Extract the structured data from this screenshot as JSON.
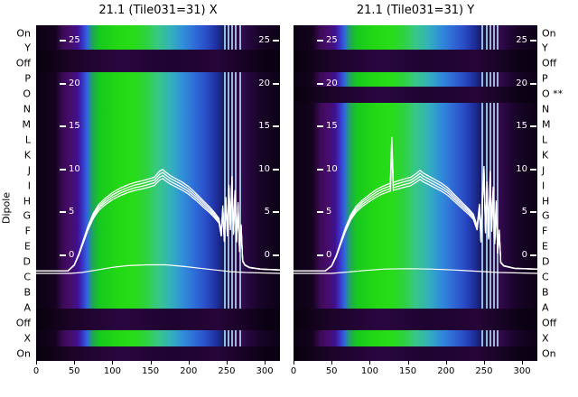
{
  "figure": {
    "ylabel": "Dipole",
    "background": "#ffffff",
    "panels": [
      {
        "title": "21.1 (Tile031=31) X"
      },
      {
        "title": "21.1 (Tile031=31) Y"
      }
    ],
    "left_axis_labels": [
      "On",
      "Y",
      "Off",
      "P",
      "O",
      "N",
      "M",
      "L",
      "K",
      "J",
      "I",
      "H",
      "G",
      "F",
      "E",
      "D",
      "C",
      "B",
      "A",
      "Off",
      "X",
      "On"
    ],
    "right_axis_labels": [
      "On",
      "Y",
      "Off",
      "P",
      "O **",
      "N",
      "M",
      "L",
      "K",
      "J",
      "I",
      "H",
      "G",
      "F",
      "E",
      "D",
      "C",
      "B",
      "A",
      "Off",
      "X",
      "On"
    ],
    "inner_y_ticks": [
      25,
      20,
      15,
      10,
      5,
      0
    ],
    "x_ticks": [
      0,
      50,
      100,
      150,
      200,
      250,
      300
    ]
  },
  "palette": {
    "line_color": "#ffffff",
    "spike_line_color": "#b9e4fa",
    "heatmap_gradient": [
      [
        "0%",
        "#0b0113"
      ],
      [
        "8%",
        "#150320"
      ],
      [
        "11%",
        "#3c0a58"
      ],
      [
        "14%",
        "#480d6a"
      ],
      [
        "17%",
        "#3f1090"
      ],
      [
        "19%",
        "#3a33c6"
      ],
      [
        "21%",
        "#2f68de"
      ],
      [
        "23%",
        "#1fa35e"
      ],
      [
        "26%",
        "#17c81e"
      ],
      [
        "33%",
        "#22d714"
      ],
      [
        "40%",
        "#28dc18"
      ],
      [
        "45%",
        "#2ed33c"
      ],
      [
        "50%",
        "#38c787"
      ],
      [
        "55%",
        "#33b2b8"
      ],
      [
        "60%",
        "#3090d8"
      ],
      [
        "65%",
        "#2f6cd8"
      ],
      [
        "70%",
        "#2a4cc6"
      ],
      [
        "74%",
        "#1f2f9e"
      ],
      [
        "77%",
        "#151b62"
      ],
      [
        "79%",
        "#1a0b3e"
      ],
      [
        "81%",
        "#2b0845"
      ],
      [
        "85%",
        "#300a4c"
      ],
      [
        "88%",
        "#23063a"
      ],
      [
        "92%",
        "#180426"
      ],
      [
        "100%",
        "#0e0218"
      ]
    ]
  },
  "chart_data": [
    {
      "type": "heatmap",
      "title": "21.1 (Tile031=31) X",
      "x_range": [
        0,
        320
      ],
      "x_ticks": [
        0,
        50,
        100,
        150,
        200,
        250,
        300
      ],
      "value_axis_ticks": [
        25,
        20,
        15,
        10,
        5,
        0
      ],
      "rows": [
        "On",
        "Y",
        "Off",
        "P",
        "O",
        "N",
        "M",
        "L",
        "K",
        "J",
        "I",
        "H",
        "G",
        "F",
        "E",
        "D",
        "C",
        "B",
        "A",
        "Off",
        "X",
        "On"
      ],
      "dark_bands": [
        {
          "top": 0.072,
          "bottom": 0.14
        },
        {
          "top": 0.845,
          "bottom": 0.908
        },
        {
          "top": 0.957,
          "bottom": 1.0
        }
      ],
      "spike_lines_x": [
        246,
        251,
        256,
        261,
        267
      ],
      "bundle_factors": [
        1,
        0.97,
        0.94,
        0.91
      ],
      "series": [
        {
          "name": "power-trace-bundle",
          "points": [
            [
              0,
              -1.8
            ],
            [
              42,
              -1.8
            ],
            [
              50,
              -1.1
            ],
            [
              56,
              0.2
            ],
            [
              62,
              1.8
            ],
            [
              68,
              3.4
            ],
            [
              75,
              4.9
            ],
            [
              82,
              5.9
            ],
            [
              90,
              6.6
            ],
            [
              100,
              7.3
            ],
            [
              110,
              7.8
            ],
            [
              120,
              8.2
            ],
            [
              130,
              8.5
            ],
            [
              140,
              8.7
            ],
            [
              148,
              8.9
            ],
            [
              155,
              9.1
            ],
            [
              162,
              9.8
            ],
            [
              166,
              10.0
            ],
            [
              170,
              9.7
            ],
            [
              176,
              9.3
            ],
            [
              184,
              8.9
            ],
            [
              192,
              8.5
            ],
            [
              200,
              8.0
            ],
            [
              210,
              7.2
            ],
            [
              220,
              6.3
            ],
            [
              228,
              5.6
            ],
            [
              234,
              5.0
            ],
            [
              240,
              4.3
            ],
            [
              243,
              2.6
            ],
            [
              245,
              5.8
            ],
            [
              247,
              1.9
            ],
            [
              249,
              6.8
            ],
            [
              251,
              2.6
            ],
            [
              253,
              8.2
            ],
            [
              255,
              3.4
            ],
            [
              257,
              9.2
            ],
            [
              259,
              2.8
            ],
            [
              261,
              7.6
            ],
            [
              263,
              1.8
            ],
            [
              265,
              6.2
            ],
            [
              267,
              0.6
            ],
            [
              269,
              3.6
            ],
            [
              271,
              -0.6
            ],
            [
              274,
              -1.1
            ],
            [
              280,
              -1.4
            ],
            [
              295,
              -1.6
            ],
            [
              320,
              -1.7
            ]
          ]
        },
        {
          "name": "reference-trace",
          "points": [
            [
              0,
              -2.1
            ],
            [
              45,
              -2.1
            ],
            [
              60,
              -2.0
            ],
            [
              80,
              -1.7
            ],
            [
              100,
              -1.4
            ],
            [
              120,
              -1.2
            ],
            [
              145,
              -1.1
            ],
            [
              170,
              -1.1
            ],
            [
              195,
              -1.3
            ],
            [
              215,
              -1.5
            ],
            [
              235,
              -1.7
            ],
            [
              255,
              -1.9
            ],
            [
              275,
              -2.0
            ],
            [
              320,
              -2.1
            ]
          ]
        }
      ]
    },
    {
      "type": "heatmap",
      "title": "21.1 (Tile031=31) Y",
      "x_range": [
        0,
        320
      ],
      "x_ticks": [
        0,
        50,
        100,
        150,
        200,
        250,
        300
      ],
      "value_axis_ticks": [
        25,
        20,
        15,
        10,
        5,
        0
      ],
      "rows": [
        "On",
        "Y",
        "Off",
        "P",
        "O **",
        "N",
        "M",
        "L",
        "K",
        "J",
        "I",
        "H",
        "G",
        "F",
        "E",
        "D",
        "C",
        "B",
        "A",
        "Off",
        "X",
        "On"
      ],
      "dark_bands": [
        {
          "top": 0.072,
          "bottom": 0.14
        },
        {
          "top": 0.183,
          "bottom": 0.232
        },
        {
          "top": 0.845,
          "bottom": 0.908
        },
        {
          "top": 0.957,
          "bottom": 1.0
        }
      ],
      "spike_lines_x": [
        247,
        252,
        257,
        262,
        267
      ],
      "bundle_factors": [
        1,
        0.97,
        0.94,
        0.91
      ],
      "series": [
        {
          "name": "power-trace-bundle",
          "points": [
            [
              0,
              -1.8
            ],
            [
              42,
              -1.8
            ],
            [
              50,
              -1.2
            ],
            [
              56,
              0.0
            ],
            [
              62,
              1.6
            ],
            [
              68,
              3.2
            ],
            [
              75,
              4.7
            ],
            [
              82,
              5.7
            ],
            [
              90,
              6.4
            ],
            [
              100,
              7.1
            ],
            [
              108,
              7.6
            ],
            [
              116,
              8.0
            ],
            [
              124,
              8.3
            ],
            [
              127,
              8.4
            ],
            [
              129,
              13.8
            ],
            [
              131,
              8.5
            ],
            [
              138,
              8.7
            ],
            [
              146,
              8.9
            ],
            [
              154,
              9.1
            ],
            [
              162,
              9.6
            ],
            [
              166,
              9.9
            ],
            [
              170,
              9.6
            ],
            [
              178,
              9.2
            ],
            [
              186,
              8.8
            ],
            [
              194,
              8.4
            ],
            [
              202,
              7.9
            ],
            [
              212,
              7.0
            ],
            [
              222,
              6.1
            ],
            [
              230,
              5.4
            ],
            [
              236,
              4.8
            ],
            [
              241,
              3.4
            ],
            [
              244,
              6.0
            ],
            [
              246,
              1.8
            ],
            [
              248,
              7.2
            ],
            [
              250,
              10.4
            ],
            [
              252,
              3.0
            ],
            [
              254,
              8.6
            ],
            [
              256,
              2.2
            ],
            [
              258,
              9.8
            ],
            [
              260,
              3.2
            ],
            [
              262,
              8.0
            ],
            [
              264,
              1.6
            ],
            [
              266,
              6.4
            ],
            [
              268,
              0.4
            ],
            [
              270,
              3.0
            ],
            [
              272,
              -0.8
            ],
            [
              276,
              -1.2
            ],
            [
              290,
              -1.5
            ],
            [
              320,
              -1.6
            ]
          ]
        },
        {
          "name": "reference-trace",
          "points": [
            [
              0,
              -2.1
            ],
            [
              50,
              -2.1
            ],
            [
              70,
              -1.95
            ],
            [
              95,
              -1.75
            ],
            [
              120,
              -1.6
            ],
            [
              150,
              -1.55
            ],
            [
              180,
              -1.6
            ],
            [
              210,
              -1.7
            ],
            [
              240,
              -1.85
            ],
            [
              270,
              -2.0
            ],
            [
              320,
              -2.1
            ]
          ]
        }
      ]
    }
  ]
}
